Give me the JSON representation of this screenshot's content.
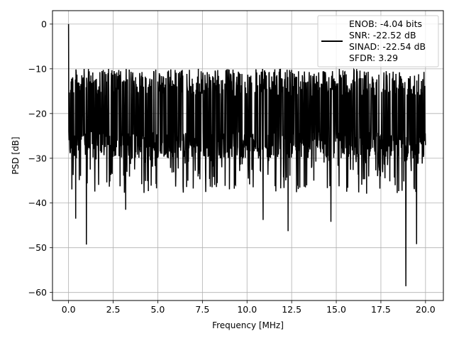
{
  "chart_data": {
    "type": "line",
    "title": "",
    "xlabel": "Frequency [MHz]",
    "ylabel": "PSD [dB]",
    "xlim": [
      -0.9,
      21.0
    ],
    "ylim": [
      -61.8,
      3.0
    ],
    "grid": true,
    "x_ticks": [
      0.0,
      2.5,
      5.0,
      7.5,
      10.0,
      12.5,
      15.0,
      17.5,
      20.0
    ],
    "x_tick_labels": [
      "0.0",
      "2.5",
      "5.0",
      "7.5",
      "10.0",
      "12.5",
      "15.0",
      "17.5",
      "20.0"
    ],
    "y_ticks": [
      0,
      -10,
      -20,
      -30,
      -40,
      -50,
      -60
    ],
    "y_tick_labels": [
      "0",
      "−10",
      "−20",
      "−30",
      "−40",
      "−50",
      "−60"
    ],
    "legend_position": "top-right",
    "legend": [
      "ENOB: -4.04 bits",
      "SNR: -22.52 dB",
      "SINAD: -22.54 dB",
      "SFDR: 3.29"
    ],
    "series": [
      {
        "color": "#000000",
        "noise_band_db": [
          -30,
          -10
        ],
        "notable_points": [
          {
            "x": 0.0,
            "y": 0.0
          },
          {
            "x": 0.4,
            "y": -43.5
          },
          {
            "x": 1.0,
            "y": -49.3
          },
          {
            "x": 3.2,
            "y": -41.5
          },
          {
            "x": 10.9,
            "y": -43.8
          },
          {
            "x": 12.3,
            "y": -46.3
          },
          {
            "x": 14.7,
            "y": -44.2
          },
          {
            "x": 18.9,
            "y": -58.6
          },
          {
            "x": 19.5,
            "y": -49.2
          }
        ]
      }
    ]
  }
}
